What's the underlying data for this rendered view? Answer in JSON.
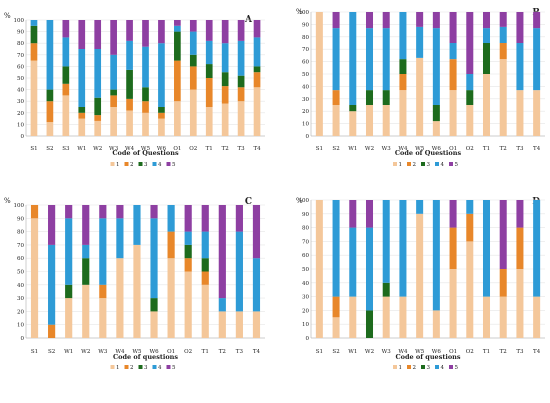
{
  "colors": {
    "1": "#f4c79a",
    "2": "#e8872a",
    "3": "#1d6b1d",
    "4": "#2e9bd6",
    "5": "#8e3fa2",
    "axis": "#bbbbbb",
    "grid": "#e6e6e6",
    "text": "#222222"
  },
  "chart_data": [
    {
      "panel": "A",
      "type": "bar",
      "stacked": true,
      "ylabel": "%",
      "xlabel": "Code of Questions",
      "ylim": [
        0,
        100
      ],
      "yticks": [
        0,
        10,
        20,
        30,
        40,
        50,
        60,
        70,
        80,
        90,
        100
      ],
      "legend": [
        "1",
        "2",
        "3",
        "4",
        "5"
      ],
      "legend_placement": "bottom",
      "categories": [
        "S1",
        "S2",
        "S3",
        "W1",
        "W2",
        "W3",
        "W4",
        "W5",
        "W6",
        "O1",
        "O2",
        "T1",
        "T2",
        "T3",
        "T4"
      ],
      "series": [
        {
          "name": "1",
          "values": [
            65,
            12,
            35,
            15,
            13,
            25,
            22,
            20,
            15,
            30,
            40,
            25,
            28,
            30,
            42
          ]
        },
        {
          "name": "2",
          "values": [
            15,
            18,
            10,
            5,
            5,
            10,
            10,
            10,
            5,
            35,
            20,
            25,
            15,
            12,
            13
          ]
        },
        {
          "name": "3",
          "values": [
            15,
            10,
            15,
            5,
            15,
            5,
            25,
            12,
            5,
            25,
            10,
            12,
            12,
            10,
            5
          ]
        },
        {
          "name": "4",
          "values": [
            5,
            60,
            25,
            50,
            42,
            30,
            25,
            35,
            55,
            5,
            20,
            20,
            25,
            30,
            25
          ]
        },
        {
          "name": "5",
          "values": [
            0,
            0,
            15,
            25,
            25,
            30,
            18,
            23,
            20,
            5,
            10,
            18,
            20,
            18,
            15
          ]
        }
      ]
    },
    {
      "panel": "B",
      "type": "bar",
      "stacked": true,
      "ylabel": "%",
      "xlabel": "Code of Questions",
      "ylim": [
        0,
        100
      ],
      "yticks": [
        0,
        10,
        20,
        30,
        40,
        50,
        60,
        70,
        80,
        90,
        100
      ],
      "legend": [
        "1",
        "2",
        "3",
        "4",
        "5"
      ],
      "legend_placement": "bottom",
      "categories": [
        "S1",
        "S2",
        "W1",
        "W2",
        "W3",
        "W4",
        "W5",
        "W6",
        "O1",
        "O2",
        "T1",
        "T2",
        "T3",
        "T4"
      ],
      "series": [
        {
          "name": "1",
          "values": [
            100,
            25,
            20,
            25,
            25,
            37,
            63,
            12,
            37,
            25,
            50,
            62,
            37,
            37
          ]
        },
        {
          "name": "2",
          "values": [
            0,
            12,
            0,
            0,
            0,
            13,
            0,
            0,
            25,
            0,
            0,
            13,
            0,
            0
          ]
        },
        {
          "name": "3",
          "values": [
            0,
            0,
            5,
            12,
            12,
            12,
            0,
            13,
            0,
            12,
            25,
            0,
            0,
            0
          ]
        },
        {
          "name": "4",
          "values": [
            0,
            50,
            75,
            50,
            50,
            38,
            25,
            62,
            13,
            13,
            12,
            13,
            38,
            50
          ]
        },
        {
          "name": "5",
          "values": [
            0,
            13,
            0,
            13,
            13,
            0,
            12,
            13,
            25,
            50,
            13,
            12,
            25,
            13
          ]
        }
      ]
    },
    {
      "panel": "C",
      "type": "bar",
      "stacked": true,
      "ylabel": "%",
      "xlabel": "Code of questions",
      "ylim": [
        0,
        100
      ],
      "yticks": [
        0,
        10,
        20,
        30,
        40,
        50,
        60,
        70,
        80,
        90,
        100
      ],
      "legend": [
        "1",
        "2",
        "3",
        "4",
        "5"
      ],
      "legend_placement": "bottom",
      "categories": [
        "S1",
        "S2",
        "W1",
        "W2",
        "W3",
        "W4",
        "W5",
        "W6",
        "O1",
        "O2",
        "T1",
        "T2",
        "T3",
        "T4"
      ],
      "series": [
        {
          "name": "1",
          "values": [
            90,
            0,
            30,
            40,
            30,
            60,
            70,
            20,
            60,
            50,
            40,
            20,
            20,
            20
          ]
        },
        {
          "name": "2",
          "values": [
            10,
            10,
            0,
            0,
            10,
            0,
            0,
            0,
            20,
            10,
            10,
            0,
            0,
            0
          ]
        },
        {
          "name": "3",
          "values": [
            0,
            0,
            10,
            20,
            0,
            0,
            0,
            10,
            0,
            10,
            10,
            0,
            0,
            0
          ]
        },
        {
          "name": "4",
          "values": [
            0,
            60,
            50,
            10,
            50,
            30,
            30,
            60,
            20,
            10,
            20,
            10,
            60,
            40
          ]
        },
        {
          "name": "5",
          "values": [
            0,
            30,
            10,
            30,
            10,
            10,
            0,
            10,
            0,
            20,
            20,
            70,
            20,
            40
          ]
        }
      ]
    },
    {
      "panel": "D",
      "type": "bar",
      "stacked": true,
      "ylabel": "%",
      "xlabel": "Code of questions",
      "ylim": [
        0,
        100
      ],
      "yticks": [
        0,
        10,
        20,
        30,
        40,
        50,
        60,
        70,
        80,
        90,
        100
      ],
      "legend": [
        "1",
        "2",
        "3",
        "4",
        "5"
      ],
      "legend_placement": "bottom",
      "categories": [
        "S1",
        "S2",
        "W1",
        "W2",
        "W3",
        "W4",
        "W5",
        "W6",
        "O1",
        "O2",
        "T1",
        "T2",
        "T3",
        "T4"
      ],
      "series": [
        {
          "name": "1",
          "values": [
            100,
            15,
            30,
            0,
            30,
            30,
            90,
            20,
            50,
            70,
            30,
            30,
            50,
            30
          ]
        },
        {
          "name": "2",
          "values": [
            0,
            15,
            0,
            0,
            0,
            0,
            0,
            0,
            30,
            20,
            0,
            20,
            30,
            0
          ]
        },
        {
          "name": "3",
          "values": [
            0,
            0,
            0,
            20,
            10,
            0,
            0,
            0,
            0,
            0,
            0,
            0,
            0,
            0
          ]
        },
        {
          "name": "4",
          "values": [
            0,
            70,
            50,
            60,
            60,
            70,
            10,
            80,
            0,
            10,
            70,
            0,
            0,
            70
          ]
        },
        {
          "name": "5",
          "values": [
            0,
            0,
            20,
            20,
            0,
            0,
            0,
            0,
            20,
            0,
            0,
            50,
            20,
            0
          ]
        }
      ]
    }
  ]
}
